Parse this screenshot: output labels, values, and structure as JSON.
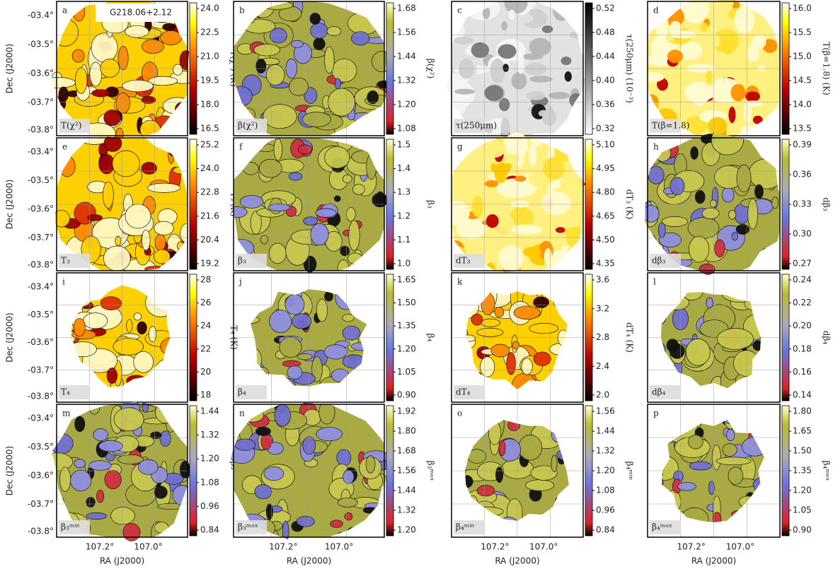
{
  "title": "G218.06+2.12",
  "axes": {
    "dec_label": "Dec (J2000)",
    "ra_label": "RA (J2000)",
    "dec_ticks": [
      "-03.4°",
      "-03.5°",
      "-03.6°",
      "-03.7°",
      "-03.8°"
    ],
    "ra_ticks": [
      "107.2°",
      "107.0°"
    ]
  },
  "panels": [
    {
      "letter": "a",
      "label": "T(χ²)",
      "colorbar_label": "T(χ²) (K)",
      "ticks": [
        "24.0",
        "22.5",
        "21.0",
        "19.5",
        "18.0",
        "16.5"
      ]
    },
    {
      "letter": "b",
      "label": "β(χ²)",
      "colorbar_label": "β(χ²)",
      "ticks": [
        "1.68",
        "1.56",
        "1.44",
        "1.32",
        "1.20",
        "1.08"
      ]
    },
    {
      "letter": "c",
      "label": "τ(250μm)",
      "colorbar_label": "τ(250μm) (10⁻³)",
      "ticks": [
        "0.52",
        "0.48",
        "0.44",
        "0.40",
        "0.36",
        "0.32"
      ]
    },
    {
      "letter": "d",
      "label": "T(β=1.8)",
      "colorbar_label": "T(β=1.8) (K)",
      "ticks": [
        "16.0",
        "15.5",
        "15.0",
        "14.5",
        "14.0",
        "13.5"
      ]
    },
    {
      "letter": "e",
      "label": "T₃",
      "colorbar_label": "T₃ (K)",
      "ticks": [
        "25.2",
        "24.0",
        "22.8",
        "21.6",
        "20.4",
        "19.2"
      ]
    },
    {
      "letter": "f",
      "label": "β₃",
      "colorbar_label": "β₃",
      "ticks": [
        "1.5",
        "1.4",
        "1.3",
        "1.2",
        "1.1",
        "1.0"
      ]
    },
    {
      "letter": "g",
      "label": "dT₃",
      "colorbar_label": "dT₃ (K)",
      "ticks": [
        "5.10",
        "4.95",
        "4.80",
        "4.65",
        "4.50",
        "4.35"
      ]
    },
    {
      "letter": "h",
      "label": "dβ₃",
      "colorbar_label": "dβ₃",
      "ticks": [
        "0.39",
        "0.36",
        "0.33",
        "0.30",
        "0.27"
      ]
    },
    {
      "letter": "i",
      "label": "T₄",
      "colorbar_label": "T₄ (K)",
      "ticks": [
        "28",
        "26",
        "24",
        "22",
        "20",
        "18"
      ]
    },
    {
      "letter": "j",
      "label": "β₄",
      "colorbar_label": "β₄",
      "ticks": [
        "1.65",
        "1.50",
        "1.35",
        "1.20",
        "1.05",
        "0.90"
      ]
    },
    {
      "letter": "k",
      "label": "dT₄",
      "colorbar_label": "dT₄ (K)",
      "ticks": [
        "3.6",
        "3.2",
        "2.8",
        "2.4",
        "2.0"
      ]
    },
    {
      "letter": "l",
      "label": "dβ₄",
      "colorbar_label": "dβ₄",
      "ticks": [
        "0.24",
        "0.22",
        "0.20",
        "0.18",
        "0.16",
        "0.14"
      ]
    },
    {
      "letter": "m",
      "label": "β₃ᵐⁱⁿ",
      "colorbar_label": "β₃ᵐⁱⁿ",
      "ticks": [
        "1.44",
        "1.32",
        "1.20",
        "1.08",
        "0.96",
        "0.84"
      ]
    },
    {
      "letter": "n",
      "label": "β₃ᵐᵃˣ",
      "colorbar_label": "β₃ᵐᵃˣ",
      "ticks": [
        "1.92",
        "1.80",
        "1.68",
        "1.56",
        "1.44",
        "1.32",
        "1.20"
      ]
    },
    {
      "letter": "o",
      "label": "β₄ᵐⁱⁿ",
      "colorbar_label": "β₄ᵐⁱⁿ",
      "ticks": [
        "1.56",
        "1.44",
        "1.32",
        "1.20",
        "1.08",
        "0.96",
        "0.84"
      ]
    },
    {
      "letter": "p",
      "label": "β₄ᵐᵃˣ",
      "colorbar_label": "β₄ᵐᵃˣ",
      "ticks": [
        "1.80",
        "1.65",
        "1.50",
        "1.35",
        "1.20",
        "1.05",
        "0.90"
      ]
    }
  ]
}
